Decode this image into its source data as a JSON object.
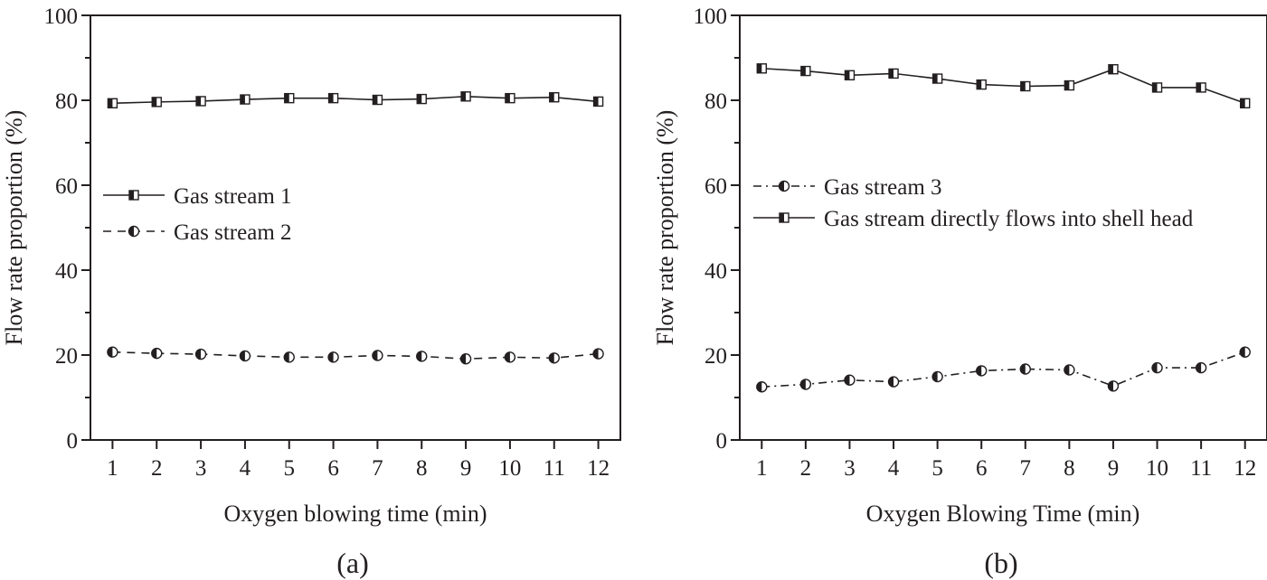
{
  "chart_data": [
    {
      "type": "line",
      "panel_label": "(a)",
      "xlabel": "Oxygen blowing time (min)",
      "ylabel": "Flow rate proportion (%)",
      "x": [
        1,
        2,
        3,
        4,
        5,
        6,
        7,
        8,
        9,
        10,
        11,
        12
      ],
      "xlim": [
        0.5,
        12.5
      ],
      "ylim": [
        0,
        100
      ],
      "yticks": [
        0,
        20,
        40,
        60,
        80,
        100
      ],
      "legend_position": "center-left",
      "series": [
        {
          "name": "Gas stream 1",
          "style": "solid",
          "marker": "half-square",
          "values": [
            79.3,
            79.6,
            79.8,
            80.2,
            80.5,
            80.5,
            80.1,
            80.3,
            80.9,
            80.5,
            80.7,
            79.7
          ]
        },
        {
          "name": "Gas stream 2",
          "style": "dashed",
          "marker": "half-circle",
          "values": [
            20.7,
            20.4,
            20.2,
            19.8,
            19.5,
            19.5,
            19.9,
            19.7,
            19.1,
            19.5,
            19.3,
            20.3
          ]
        }
      ]
    },
    {
      "type": "line",
      "panel_label": "(b)",
      "xlabel": "Oxygen Blowing Time (min)",
      "ylabel": "Flow rate proportion (%)",
      "x": [
        1,
        2,
        3,
        4,
        5,
        6,
        7,
        8,
        9,
        10,
        11,
        12
      ],
      "xlim": [
        0.5,
        12.5
      ],
      "ylim": [
        0,
        100
      ],
      "yticks": [
        0,
        20,
        40,
        60,
        80,
        100
      ],
      "legend_position": "center-left",
      "series": [
        {
          "name": "Gas stream 3",
          "style": "dashdot",
          "marker": "half-circle",
          "values": [
            12.5,
            13.1,
            14.1,
            13.7,
            14.9,
            16.3,
            16.7,
            16.5,
            12.7,
            17.0,
            17.0,
            20.7
          ]
        },
        {
          "name": "Gas stream directly flows into shell head",
          "style": "solid",
          "marker": "half-square",
          "values": [
            87.5,
            86.9,
            85.9,
            86.3,
            85.1,
            83.7,
            83.3,
            83.5,
            87.3,
            83.0,
            83.0,
            79.3
          ]
        }
      ]
    }
  ]
}
